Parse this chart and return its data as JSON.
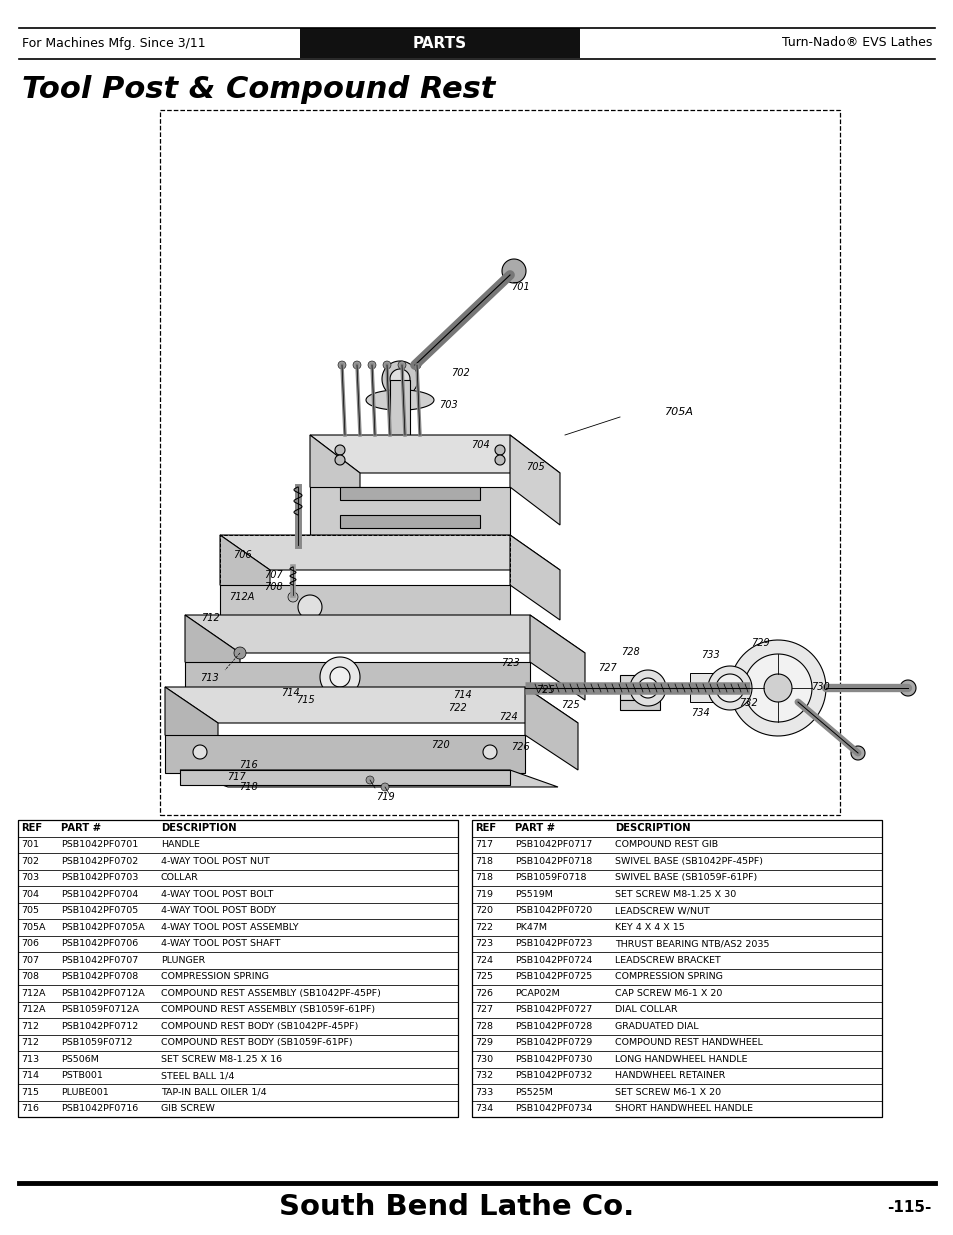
{
  "header_left": "For Machines Mfg. Since 3/11",
  "header_center": "PARTS",
  "header_right": "Turn-Nado® EVS Lathes",
  "title": "Tool Post & Compound Rest",
  "footer_brand": "South Bend Lathe Co.",
  "footer_trademark": "®",
  "footer_page": "-115-",
  "bg_color": "#ffffff",
  "table_left": [
    [
      "REF",
      "PART #",
      "DESCRIPTION"
    ],
    [
      "701",
      "PSB1042PF0701",
      "HANDLE"
    ],
    [
      "702",
      "PSB1042PF0702",
      "4-WAY TOOL POST NUT"
    ],
    [
      "703",
      "PSB1042PF0703",
      "COLLAR"
    ],
    [
      "704",
      "PSB1042PF0704",
      "4-WAY TOOL POST BOLT"
    ],
    [
      "705",
      "PSB1042PF0705",
      "4-WAY TOOL POST BODY"
    ],
    [
      "705A",
      "PSB1042PF0705A",
      "4-WAY TOOL POST ASSEMBLY"
    ],
    [
      "706",
      "PSB1042PF0706",
      "4-WAY TOOL POST SHAFT"
    ],
    [
      "707",
      "PSB1042PF0707",
      "PLUNGER"
    ],
    [
      "708",
      "PSB1042PF0708",
      "COMPRESSION SPRING"
    ],
    [
      "712A",
      "PSB1042PF0712A",
      "COMPOUND REST ASSEMBLY (SB1042PF-45PF)"
    ],
    [
      "712A",
      "PSB1059F0712A",
      "COMPOUND REST ASSEMBLY (SB1059F-61PF)"
    ],
    [
      "712",
      "PSB1042PF0712",
      "COMPOUND REST BODY (SB1042PF-45PF)"
    ],
    [
      "712",
      "PSB1059F0712",
      "COMPOUND REST BODY (SB1059F-61PF)"
    ],
    [
      "713",
      "PS506M",
      "SET SCREW M8-1.25 X 16"
    ],
    [
      "714",
      "PSTB001",
      "STEEL BALL 1/4"
    ],
    [
      "715",
      "PLUBE001",
      "TAP-IN BALL OILER 1/4"
    ],
    [
      "716",
      "PSB1042PF0716",
      "GIB SCREW"
    ]
  ],
  "table_right": [
    [
      "REF",
      "PART #",
      "DESCRIPTION"
    ],
    [
      "717",
      "PSB1042PF0717",
      "COMPOUND REST GIB"
    ],
    [
      "718",
      "PSB1042PF0718",
      "SWIVEL BASE (SB1042PF-45PF)"
    ],
    [
      "718",
      "PSB1059F0718",
      "SWIVEL BASE (SB1059F-61PF)"
    ],
    [
      "719",
      "PS519M",
      "SET SCREW M8-1.25 X 30"
    ],
    [
      "720",
      "PSB1042PF0720",
      "LEADSCREW W/NUT"
    ],
    [
      "722",
      "PK47M",
      "KEY 4 X 4 X 15"
    ],
    [
      "723",
      "PSB1042PF0723",
      "THRUST BEARING NTB/AS2 2035"
    ],
    [
      "724",
      "PSB1042PF0724",
      "LEADSCREW BRACKET"
    ],
    [
      "725",
      "PSB1042PF0725",
      "COMPRESSION SPRING"
    ],
    [
      "726",
      "PCAP02M",
      "CAP SCREW M6-1 X 20"
    ],
    [
      "727",
      "PSB1042PF0727",
      "DIAL COLLAR"
    ],
    [
      "728",
      "PSB1042PF0728",
      "GRADUATED DIAL"
    ],
    [
      "729",
      "PSB1042PF0729",
      "COMPOUND REST HANDWHEEL"
    ],
    [
      "730",
      "PSB1042PF0730",
      "LONG HANDWHEEL HANDLE"
    ],
    [
      "732",
      "PSB1042PF0732",
      "HANDWHEEL RETAINER"
    ],
    [
      "733",
      "PS525M",
      "SET SCREW M6-1 X 20"
    ],
    [
      "734",
      "PSB1042PF0734",
      "SHORT HANDWHEEL HANDLE"
    ]
  ]
}
